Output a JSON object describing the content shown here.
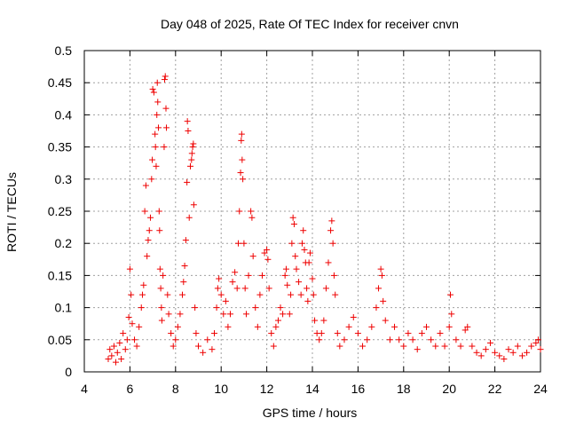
{
  "chart_data": {
    "type": "scatter",
    "title": "Day 048 of 2025, Rate Of TEC Index for receiver cnvn",
    "xlabel": "GPS time / hours",
    "ylabel": "ROTI / TECUs",
    "xlim": [
      4,
      24
    ],
    "ylim": [
      0,
      0.5
    ],
    "x_ticks": [
      4,
      6,
      8,
      10,
      12,
      14,
      16,
      18,
      20,
      22,
      24
    ],
    "x_tick_labels": [
      "4",
      "6",
      "8",
      "10",
      "12",
      "14",
      "16",
      "18",
      "20",
      "22",
      "24"
    ],
    "y_ticks": [
      0,
      0.05,
      0.1,
      0.15,
      0.2,
      0.25,
      0.3,
      0.35,
      0.4,
      0.45,
      0.5
    ],
    "y_tick_labels": [
      "0",
      "0.05",
      "0.1",
      "0.15",
      "0.2",
      "0.25",
      "0.3",
      "0.35",
      "0.4",
      "0.45",
      "0.5"
    ],
    "grid": true,
    "marker": "+",
    "point_color": "#ee0000",
    "series": [
      {
        "points": [
          [
            5.05,
            0.02
          ],
          [
            5.12,
            0.035
          ],
          [
            5.2,
            0.025
          ],
          [
            5.3,
            0.04
          ],
          [
            5.38,
            0.015
          ],
          [
            5.45,
            0.03
          ],
          [
            5.55,
            0.045
          ],
          [
            5.62,
            0.02
          ],
          [
            5.7,
            0.06
          ],
          [
            5.8,
            0.035
          ],
          [
            5.88,
            0.05
          ],
          [
            5.95,
            0.085
          ],
          [
            6.0,
            0.16
          ],
          [
            6.05,
            0.12
          ],
          [
            6.1,
            0.075
          ],
          [
            6.2,
            0.05
          ],
          [
            6.3,
            0.04
          ],
          [
            6.4,
            0.07
          ],
          [
            6.5,
            0.1
          ],
          [
            6.55,
            0.12
          ],
          [
            6.6,
            0.135
          ],
          [
            6.65,
            0.25
          ],
          [
            6.7,
            0.29
          ],
          [
            6.75,
            0.18
          ],
          [
            6.8,
            0.205
          ],
          [
            6.85,
            0.22
          ],
          [
            6.9,
            0.24
          ],
          [
            6.95,
            0.3
          ],
          [
            6.98,
            0.33
          ],
          [
            7.0,
            0.44
          ],
          [
            7.05,
            0.435
          ],
          [
            7.1,
            0.37
          ],
          [
            7.12,
            0.35
          ],
          [
            7.15,
            0.32
          ],
          [
            7.18,
            0.4
          ],
          [
            7.2,
            0.45
          ],
          [
            7.22,
            0.42
          ],
          [
            7.25,
            0.38
          ],
          [
            7.28,
            0.25
          ],
          [
            7.3,
            0.22
          ],
          [
            7.32,
            0.16
          ],
          [
            7.35,
            0.13
          ],
          [
            7.38,
            0.1
          ],
          [
            7.4,
            0.08
          ],
          [
            7.45,
            0.15
          ],
          [
            7.5,
            0.35
          ],
          [
            7.52,
            0.455
          ],
          [
            7.55,
            0.46
          ],
          [
            7.58,
            0.41
          ],
          [
            7.6,
            0.38
          ],
          [
            7.65,
            0.12
          ],
          [
            7.7,
            0.09
          ],
          [
            7.8,
            0.06
          ],
          [
            7.9,
            0.04
          ],
          [
            8.0,
            0.05
          ],
          [
            8.1,
            0.07
          ],
          [
            8.2,
            0.09
          ],
          [
            8.3,
            0.12
          ],
          [
            8.35,
            0.14
          ],
          [
            8.4,
            0.165
          ],
          [
            8.45,
            0.205
          ],
          [
            8.5,
            0.295
          ],
          [
            8.52,
            0.39
          ],
          [
            8.55,
            0.375
          ],
          [
            8.6,
            0.24
          ],
          [
            8.65,
            0.32
          ],
          [
            8.7,
            0.33
          ],
          [
            8.72,
            0.34
          ],
          [
            8.75,
            0.35
          ],
          [
            8.78,
            0.355
          ],
          [
            8.8,
            0.26
          ],
          [
            8.85,
            0.1
          ],
          [
            8.9,
            0.06
          ],
          [
            9.0,
            0.04
          ],
          [
            9.2,
            0.03
          ],
          [
            9.4,
            0.05
          ],
          [
            9.6,
            0.035
          ],
          [
            9.7,
            0.06
          ],
          [
            9.8,
            0.1
          ],
          [
            9.85,
            0.13
          ],
          [
            9.9,
            0.145
          ],
          [
            10.0,
            0.12
          ],
          [
            10.1,
            0.09
          ],
          [
            10.2,
            0.11
          ],
          [
            10.3,
            0.07
          ],
          [
            10.4,
            0.09
          ],
          [
            10.5,
            0.14
          ],
          [
            10.6,
            0.155
          ],
          [
            10.7,
            0.13
          ],
          [
            10.75,
            0.2
          ],
          [
            10.8,
            0.25
          ],
          [
            10.85,
            0.31
          ],
          [
            10.88,
            0.36
          ],
          [
            10.9,
            0.37
          ],
          [
            10.92,
            0.33
          ],
          [
            10.95,
            0.3
          ],
          [
            11.0,
            0.2
          ],
          [
            11.05,
            0.13
          ],
          [
            11.1,
            0.09
          ],
          [
            11.2,
            0.15
          ],
          [
            11.3,
            0.25
          ],
          [
            11.35,
            0.24
          ],
          [
            11.4,
            0.18
          ],
          [
            11.5,
            0.1
          ],
          [
            11.6,
            0.07
          ],
          [
            11.7,
            0.12
          ],
          [
            11.8,
            0.15
          ],
          [
            11.9,
            0.185
          ],
          [
            12.0,
            0.19
          ],
          [
            12.05,
            0.175
          ],
          [
            12.1,
            0.13
          ],
          [
            12.2,
            0.06
          ],
          [
            12.3,
            0.04
          ],
          [
            12.4,
            0.07
          ],
          [
            12.5,
            0.08
          ],
          [
            12.6,
            0.1
          ],
          [
            12.7,
            0.09
          ],
          [
            12.8,
            0.15
          ],
          [
            12.85,
            0.16
          ],
          [
            12.9,
            0.135
          ],
          [
            13.0,
            0.09
          ],
          [
            13.05,
            0.12
          ],
          [
            13.1,
            0.2
          ],
          [
            13.15,
            0.24
          ],
          [
            13.2,
            0.23
          ],
          [
            13.25,
            0.18
          ],
          [
            13.3,
            0.16
          ],
          [
            13.4,
            0.14
          ],
          [
            13.5,
            0.12
          ],
          [
            13.55,
            0.2
          ],
          [
            13.6,
            0.22
          ],
          [
            13.65,
            0.19
          ],
          [
            13.7,
            0.17
          ],
          [
            13.75,
            0.13
          ],
          [
            13.8,
            0.11
          ],
          [
            13.85,
            0.17
          ],
          [
            13.9,
            0.185
          ],
          [
            14.0,
            0.145
          ],
          [
            14.05,
            0.12
          ],
          [
            14.1,
            0.08
          ],
          [
            14.2,
            0.06
          ],
          [
            14.3,
            0.05
          ],
          [
            14.4,
            0.06
          ],
          [
            14.5,
            0.08
          ],
          [
            14.6,
            0.13
          ],
          [
            14.7,
            0.17
          ],
          [
            14.8,
            0.22
          ],
          [
            14.85,
            0.235
          ],
          [
            14.9,
            0.2
          ],
          [
            14.95,
            0.15
          ],
          [
            15.0,
            0.12
          ],
          [
            15.1,
            0.06
          ],
          [
            15.2,
            0.04
          ],
          [
            15.4,
            0.05
          ],
          [
            15.6,
            0.07
          ],
          [
            15.8,
            0.085
          ],
          [
            16.0,
            0.06
          ],
          [
            16.2,
            0.04
          ],
          [
            16.4,
            0.05
          ],
          [
            16.6,
            0.07
          ],
          [
            16.8,
            0.1
          ],
          [
            16.9,
            0.13
          ],
          [
            17.0,
            0.16
          ],
          [
            17.05,
            0.15
          ],
          [
            17.1,
            0.11
          ],
          [
            17.2,
            0.08
          ],
          [
            17.4,
            0.05
          ],
          [
            17.6,
            0.07
          ],
          [
            17.8,
            0.05
          ],
          [
            18.0,
            0.04
          ],
          [
            18.2,
            0.06
          ],
          [
            18.4,
            0.05
          ],
          [
            18.6,
            0.035
          ],
          [
            18.8,
            0.06
          ],
          [
            19.0,
            0.07
          ],
          [
            19.2,
            0.05
          ],
          [
            19.4,
            0.04
          ],
          [
            19.6,
            0.06
          ],
          [
            19.8,
            0.04
          ],
          [
            20.0,
            0.07
          ],
          [
            20.05,
            0.12
          ],
          [
            20.1,
            0.09
          ],
          [
            20.3,
            0.05
          ],
          [
            20.5,
            0.04
          ],
          [
            20.7,
            0.065
          ],
          [
            20.8,
            0.07
          ],
          [
            21.0,
            0.04
          ],
          [
            21.2,
            0.03
          ],
          [
            21.4,
            0.025
          ],
          [
            21.6,
            0.035
          ],
          [
            21.8,
            0.045
          ],
          [
            22.0,
            0.03
          ],
          [
            22.2,
            0.025
          ],
          [
            22.4,
            0.02
          ],
          [
            22.6,
            0.035
          ],
          [
            22.8,
            0.03
          ],
          [
            23.0,
            0.04
          ],
          [
            23.2,
            0.025
          ],
          [
            23.4,
            0.03
          ],
          [
            23.6,
            0.04
          ],
          [
            23.8,
            0.045
          ],
          [
            23.9,
            0.05
          ],
          [
            24.0,
            0.035
          ]
        ]
      }
    ]
  }
}
